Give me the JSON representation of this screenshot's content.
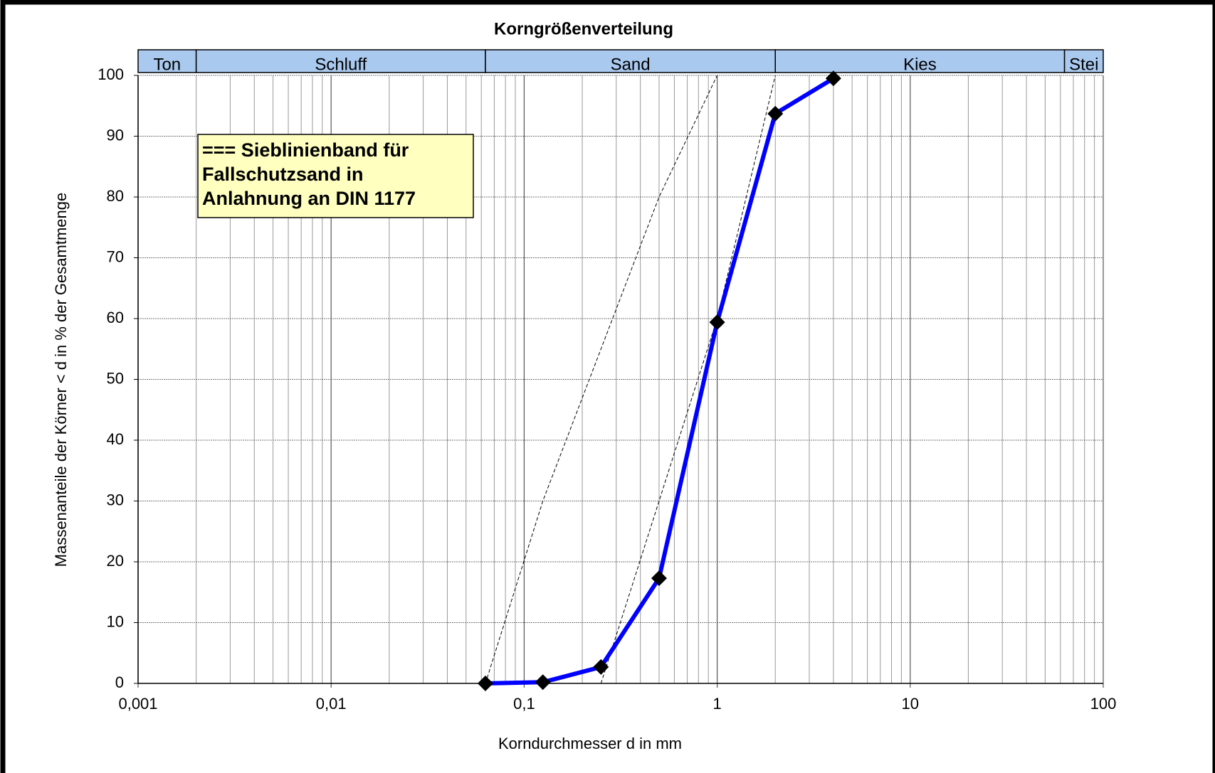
{
  "chart_data": {
    "type": "line",
    "title": "Korngrößenverteilung",
    "x_label": "Korndurchmesser d  in mm",
    "y_label": "Massenanteile der Körner < d in % der Gesamtmenge",
    "annotation": [
      "===  Sieblinienband für",
      "Fallschutzsand in",
      "Anlahnung an DIN 1177"
    ],
    "xscale": "log",
    "xlim": [
      0.001,
      100
    ],
    "xticks": [
      {
        "value": 0.001,
        "label": "0,001"
      },
      {
        "value": 0.01,
        "label": "0,01"
      },
      {
        "value": 0.1,
        "label": "0,1"
      },
      1,
      10,
      100
    ],
    "xminorticks": [
      0.002,
      0.003,
      0.004,
      0.005,
      0.006,
      0.007,
      0.008,
      0.009,
      0.02,
      0.03,
      0.04,
      0.05,
      0.06,
      0.07,
      0.08,
      0.09,
      0.2,
      0.3,
      0.4,
      0.5,
      0.6,
      0.7,
      0.8,
      0.9,
      2,
      3,
      4,
      5,
      6,
      7,
      8,
      9,
      20,
      30,
      40,
      50,
      60,
      70,
      80,
      90
    ],
    "ylim": [
      0,
      100
    ],
    "yticks": [
      0,
      10,
      20,
      30,
      40,
      50,
      60,
      70,
      80,
      90,
      100
    ],
    "grid": true,
    "bands": [
      {
        "label": "Ton",
        "from": 0.001,
        "to": 0.002
      },
      {
        "label": "Schluff",
        "from": 0.002,
        "to": 0.063
      },
      {
        "label": "Sand",
        "from": 0.063,
        "to": 2
      },
      {
        "label": "Kies",
        "from": 2,
        "to": 63
      },
      {
        "label": "Stei",
        "from": 63,
        "to": 100
      }
    ],
    "band_color": "#a9c9ef",
    "series": [
      {
        "color": "#0000ff",
        "marker": "diamond",
        "x": [
          0.063,
          0.125,
          0.25,
          0.5,
          1,
          2,
          4
        ],
        "values": [
          0,
          0.2,
          2.7,
          17.3,
          59.4,
          93.7,
          99.5
        ]
      },
      {
        "color": "#000000",
        "dashed": true,
        "x": [
          0.063,
          0.125,
          0.25,
          0.5,
          1
        ],
        "values": [
          0,
          30,
          55,
          80,
          100
        ]
      },
      {
        "color": "#000000",
        "dashed": true,
        "x": [
          0.25,
          0.5,
          1,
          2
        ],
        "values": [
          0,
          30,
          60,
          100
        ]
      }
    ]
  }
}
